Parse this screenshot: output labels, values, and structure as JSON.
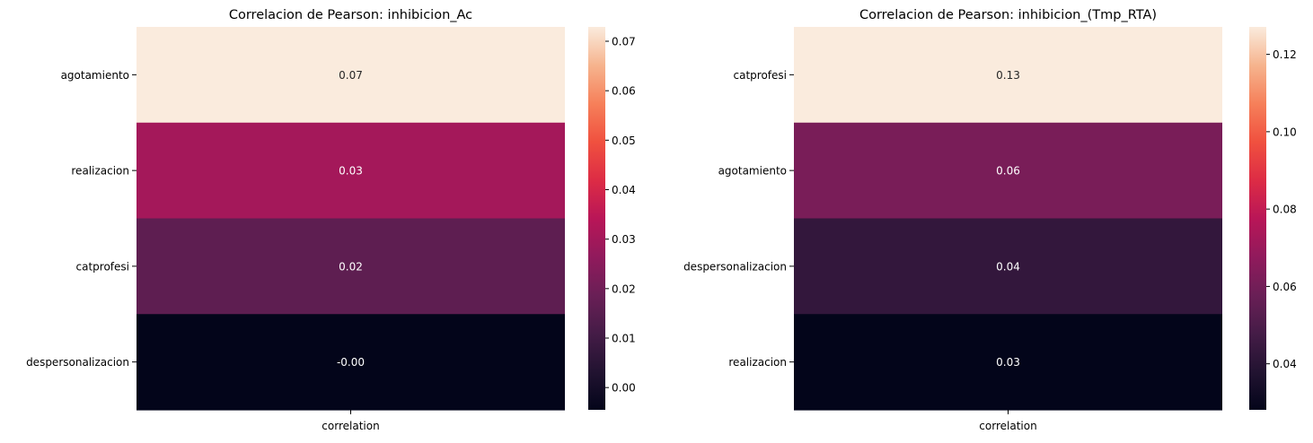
{
  "chart_data": [
    {
      "type": "heatmap",
      "title": "Correlacion de Pearson: inhibicion_Ac",
      "rows": [
        "agotamiento",
        "realizacion",
        "catprofesi",
        "despersonalizacion"
      ],
      "columns": [
        "correlation"
      ],
      "values": [
        0.0729,
        0.0301,
        0.0162,
        -0.0045
      ],
      "cell_labels": [
        "0.07",
        "0.03",
        "0.02",
        "-0.00"
      ],
      "colorbar": {
        "range": [
          -0.0045,
          0.0729
        ],
        "ticks": [
          0.0,
          0.01,
          0.02,
          0.03,
          0.04,
          0.05,
          0.06,
          0.07
        ],
        "tick_labels": [
          "0.00",
          "0.01",
          "0.02",
          "0.03",
          "0.04",
          "0.05",
          "0.06",
          "0.07"
        ]
      },
      "colormap": "rocket"
    },
    {
      "type": "heatmap",
      "title": "Correlacion de Pearson: inhibicion_(Tmp_RTA)",
      "rows": [
        "catprofesi",
        "agotamiento",
        "despersonalizacion",
        "realizacion"
      ],
      "columns": [
        "correlation"
      ],
      "values": [
        0.1271,
        0.0615,
        0.0429,
        0.0281
      ],
      "cell_labels": [
        "0.13",
        "0.06",
        "0.04",
        "0.03"
      ],
      "colorbar": {
        "range": [
          0.0281,
          0.1271
        ],
        "ticks": [
          0.04,
          0.06,
          0.08,
          0.1,
          0.12
        ],
        "tick_labels": [
          "0.04",
          "0.06",
          "0.08",
          "0.10",
          "0.12"
        ]
      },
      "colormap": "rocket"
    }
  ]
}
